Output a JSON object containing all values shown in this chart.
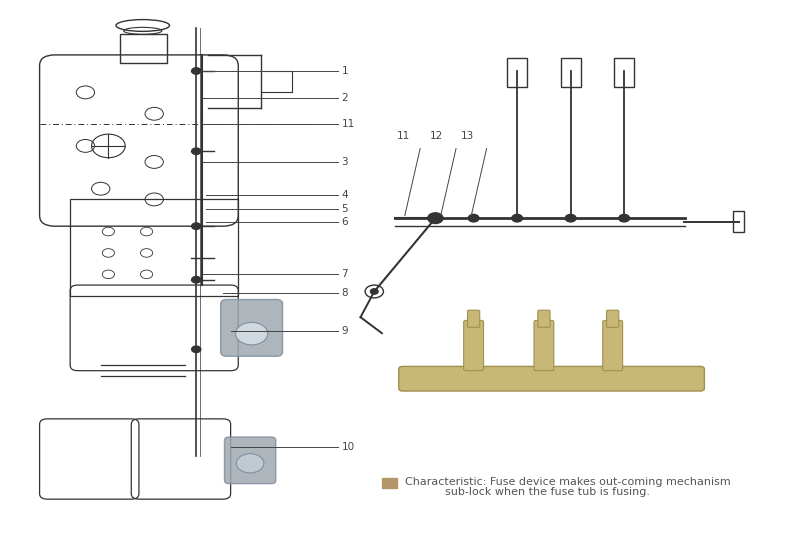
{
  "bg_color": "#ffffff",
  "fig_width": 8.0,
  "fig_height": 5.38,
  "dpi": 100,
  "characteristic_text_line1": "Characteristic: Fuse device makes out-coming mechanism",
  "characteristic_text_line2": "sub-lock when the fuse tub is fusing.",
  "char_square_color": "#b5956a",
  "label_color": "#444444",
  "line_color": "#333333",
  "gold_color": "#c8b878",
  "silver_color": "#a0a8b0"
}
